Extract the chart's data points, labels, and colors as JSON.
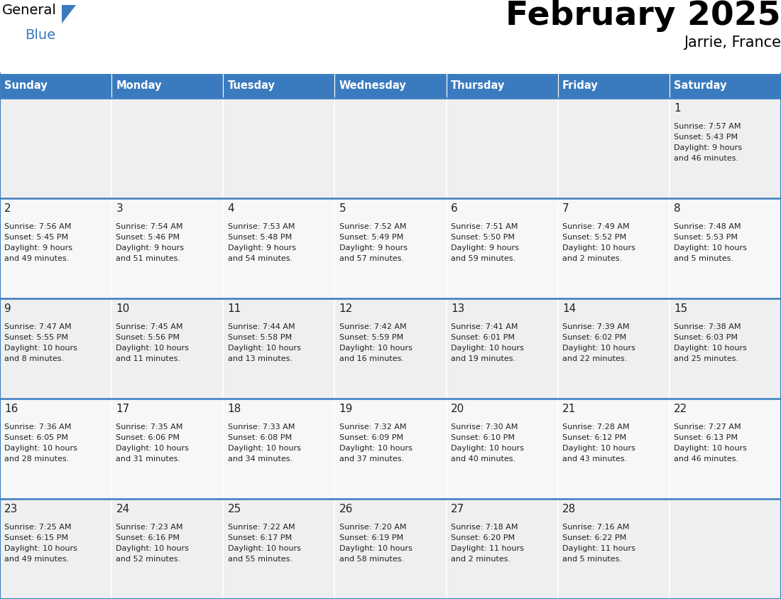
{
  "title": "February 2025",
  "subtitle": "Jarrie, France",
  "header_color": "#3a7bbf",
  "header_text_color": "#ffffff",
  "cell_bg_even": "#efefef",
  "cell_bg_odd": "#f7f7f7",
  "border_color": "#3a7bbf",
  "text_color": "#222222",
  "day_headers": [
    "Sunday",
    "Monday",
    "Tuesday",
    "Wednesday",
    "Thursday",
    "Friday",
    "Saturday"
  ],
  "days": [
    {
      "day": 1,
      "col": 6,
      "row": 0,
      "sunrise": "7:57 AM",
      "sunset": "5:43 PM",
      "daylight_h": "9 hours",
      "daylight_m": "46 minutes."
    },
    {
      "day": 2,
      "col": 0,
      "row": 1,
      "sunrise": "7:56 AM",
      "sunset": "5:45 PM",
      "daylight_h": "9 hours",
      "daylight_m": "49 minutes."
    },
    {
      "day": 3,
      "col": 1,
      "row": 1,
      "sunrise": "7:54 AM",
      "sunset": "5:46 PM",
      "daylight_h": "9 hours",
      "daylight_m": "51 minutes."
    },
    {
      "day": 4,
      "col": 2,
      "row": 1,
      "sunrise": "7:53 AM",
      "sunset": "5:48 PM",
      "daylight_h": "9 hours",
      "daylight_m": "54 minutes."
    },
    {
      "day": 5,
      "col": 3,
      "row": 1,
      "sunrise": "7:52 AM",
      "sunset": "5:49 PM",
      "daylight_h": "9 hours",
      "daylight_m": "57 minutes."
    },
    {
      "day": 6,
      "col": 4,
      "row": 1,
      "sunrise": "7:51 AM",
      "sunset": "5:50 PM",
      "daylight_h": "9 hours",
      "daylight_m": "59 minutes."
    },
    {
      "day": 7,
      "col": 5,
      "row": 1,
      "sunrise": "7:49 AM",
      "sunset": "5:52 PM",
      "daylight_h": "10 hours",
      "daylight_m": "2 minutes."
    },
    {
      "day": 8,
      "col": 6,
      "row": 1,
      "sunrise": "7:48 AM",
      "sunset": "5:53 PM",
      "daylight_h": "10 hours",
      "daylight_m": "5 minutes."
    },
    {
      "day": 9,
      "col": 0,
      "row": 2,
      "sunrise": "7:47 AM",
      "sunset": "5:55 PM",
      "daylight_h": "10 hours",
      "daylight_m": "8 minutes."
    },
    {
      "day": 10,
      "col": 1,
      "row": 2,
      "sunrise": "7:45 AM",
      "sunset": "5:56 PM",
      "daylight_h": "10 hours",
      "daylight_m": "11 minutes."
    },
    {
      "day": 11,
      "col": 2,
      "row": 2,
      "sunrise": "7:44 AM",
      "sunset": "5:58 PM",
      "daylight_h": "10 hours",
      "daylight_m": "13 minutes."
    },
    {
      "day": 12,
      "col": 3,
      "row": 2,
      "sunrise": "7:42 AM",
      "sunset": "5:59 PM",
      "daylight_h": "10 hours",
      "daylight_m": "16 minutes."
    },
    {
      "day": 13,
      "col": 4,
      "row": 2,
      "sunrise": "7:41 AM",
      "sunset": "6:01 PM",
      "daylight_h": "10 hours",
      "daylight_m": "19 minutes."
    },
    {
      "day": 14,
      "col": 5,
      "row": 2,
      "sunrise": "7:39 AM",
      "sunset": "6:02 PM",
      "daylight_h": "10 hours",
      "daylight_m": "22 minutes."
    },
    {
      "day": 15,
      "col": 6,
      "row": 2,
      "sunrise": "7:38 AM",
      "sunset": "6:03 PM",
      "daylight_h": "10 hours",
      "daylight_m": "25 minutes."
    },
    {
      "day": 16,
      "col": 0,
      "row": 3,
      "sunrise": "7:36 AM",
      "sunset": "6:05 PM",
      "daylight_h": "10 hours",
      "daylight_m": "28 minutes."
    },
    {
      "day": 17,
      "col": 1,
      "row": 3,
      "sunrise": "7:35 AM",
      "sunset": "6:06 PM",
      "daylight_h": "10 hours",
      "daylight_m": "31 minutes."
    },
    {
      "day": 18,
      "col": 2,
      "row": 3,
      "sunrise": "7:33 AM",
      "sunset": "6:08 PM",
      "daylight_h": "10 hours",
      "daylight_m": "34 minutes."
    },
    {
      "day": 19,
      "col": 3,
      "row": 3,
      "sunrise": "7:32 AM",
      "sunset": "6:09 PM",
      "daylight_h": "10 hours",
      "daylight_m": "37 minutes."
    },
    {
      "day": 20,
      "col": 4,
      "row": 3,
      "sunrise": "7:30 AM",
      "sunset": "6:10 PM",
      "daylight_h": "10 hours",
      "daylight_m": "40 minutes."
    },
    {
      "day": 21,
      "col": 5,
      "row": 3,
      "sunrise": "7:28 AM",
      "sunset": "6:12 PM",
      "daylight_h": "10 hours",
      "daylight_m": "43 minutes."
    },
    {
      "day": 22,
      "col": 6,
      "row": 3,
      "sunrise": "7:27 AM",
      "sunset": "6:13 PM",
      "daylight_h": "10 hours",
      "daylight_m": "46 minutes."
    },
    {
      "day": 23,
      "col": 0,
      "row": 4,
      "sunrise": "7:25 AM",
      "sunset": "6:15 PM",
      "daylight_h": "10 hours",
      "daylight_m": "49 minutes."
    },
    {
      "day": 24,
      "col": 1,
      "row": 4,
      "sunrise": "7:23 AM",
      "sunset": "6:16 PM",
      "daylight_h": "10 hours",
      "daylight_m": "52 minutes."
    },
    {
      "day": 25,
      "col": 2,
      "row": 4,
      "sunrise": "7:22 AM",
      "sunset": "6:17 PM",
      "daylight_h": "10 hours",
      "daylight_m": "55 minutes."
    },
    {
      "day": 26,
      "col": 3,
      "row": 4,
      "sunrise": "7:20 AM",
      "sunset": "6:19 PM",
      "daylight_h": "10 hours",
      "daylight_m": "58 minutes."
    },
    {
      "day": 27,
      "col": 4,
      "row": 4,
      "sunrise": "7:18 AM",
      "sunset": "6:20 PM",
      "daylight_h": "11 hours",
      "daylight_m": "2 minutes."
    },
    {
      "day": 28,
      "col": 5,
      "row": 4,
      "sunrise": "7:16 AM",
      "sunset": "6:22 PM",
      "daylight_h": "11 hours",
      "daylight_m": "5 minutes."
    }
  ],
  "logo_triangle_color": "#3a7bbf"
}
